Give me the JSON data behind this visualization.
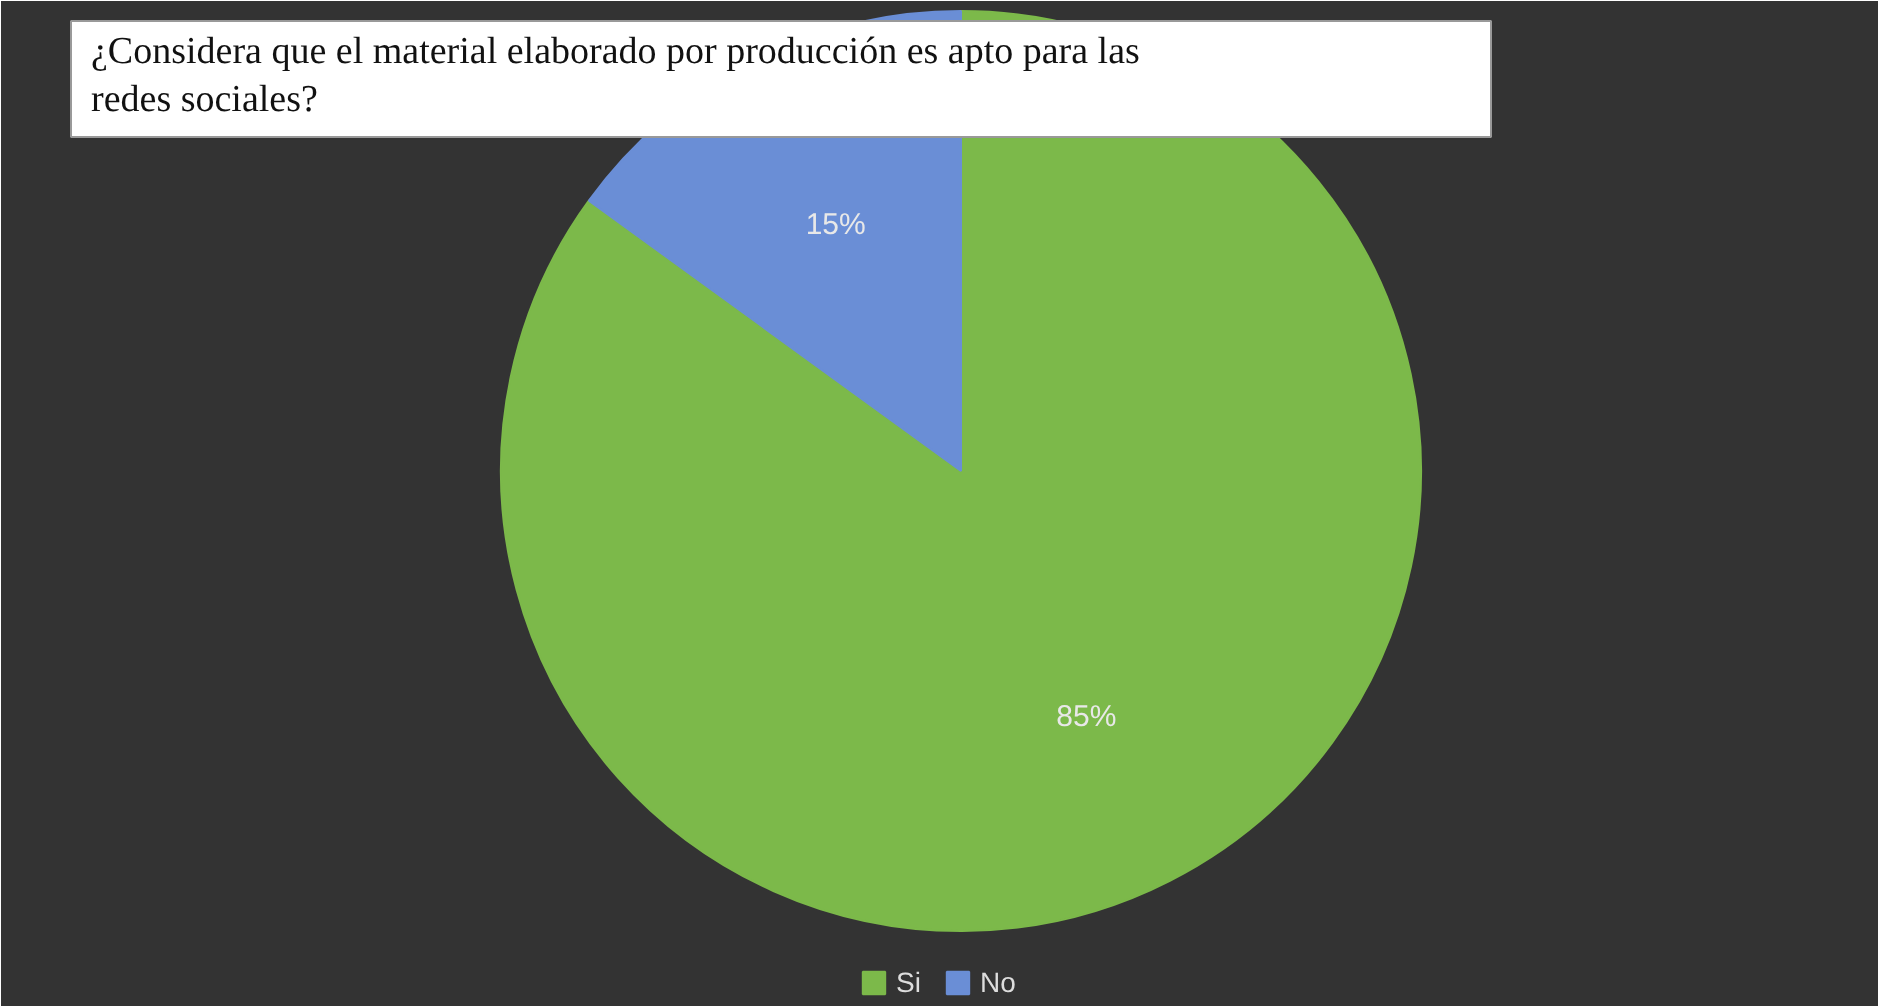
{
  "chart_data": {
    "type": "pie",
    "title": "¿Considera que el material elaborado por producción es apto para las redes sociales?",
    "categories": [
      "Si",
      "No"
    ],
    "values": [
      85,
      15
    ],
    "colors": [
      "#7cb94a",
      "#6a8ed6"
    ],
    "value_labels": [
      "85%",
      "15%"
    ],
    "legend": "bottom"
  }
}
